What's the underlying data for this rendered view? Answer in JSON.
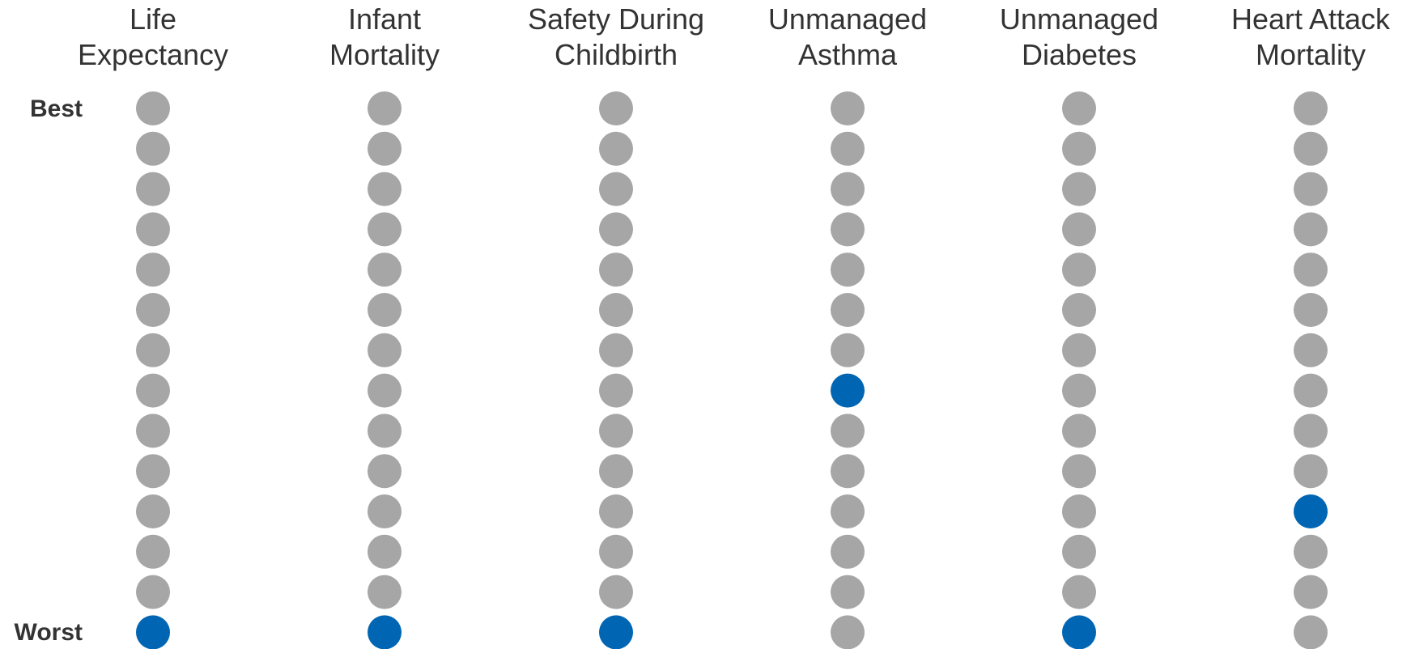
{
  "chart_data": {
    "type": "scatter",
    "title": "",
    "xlabel": "",
    "ylabel": "",
    "columns": [
      {
        "title_lines": [
          "Life",
          "Expectancy"
        ],
        "highlight_rank": 14
      },
      {
        "title_lines": [
          "Infant",
          "Mortality"
        ],
        "highlight_rank": 14
      },
      {
        "title_lines": [
          "Safety During",
          "Childbirth"
        ],
        "highlight_rank": 14
      },
      {
        "title_lines": [
          "Unmanaged",
          "Asthma"
        ],
        "highlight_rank": 8
      },
      {
        "title_lines": [
          "Unmanaged",
          "Diabetes"
        ],
        "highlight_rank": 14
      },
      {
        "title_lines": [
          "Heart Attack",
          "Mortality"
        ],
        "highlight_rank": 11
      }
    ],
    "ranks_per_column": 14,
    "y_labels": {
      "best": "Best",
      "worst": "Worst"
    },
    "rank_order": "1 = Best (top), 14 = Worst (bottom)",
    "colors": {
      "default": "#a6a6a6",
      "highlight": "#0066b3"
    }
  }
}
